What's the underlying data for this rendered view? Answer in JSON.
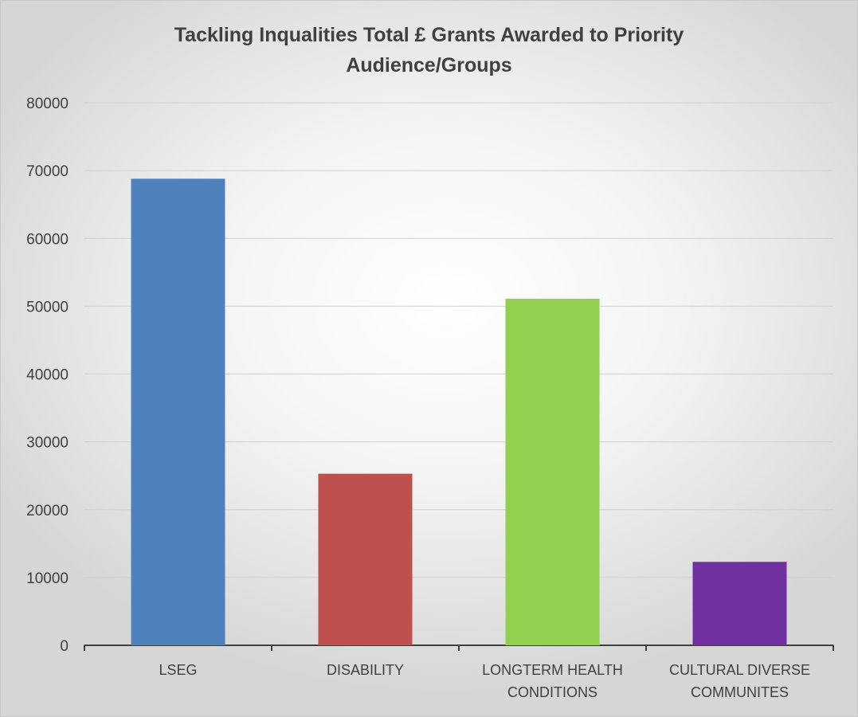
{
  "chart_data": {
    "type": "bar",
    "title": "Tackling Inqualities Total £ Grants Awarded to Priority Audience/Groups",
    "title_lines": [
      "Tackling Inqualities Total £ Grants Awarded to Priority",
      "Audience/Groups"
    ],
    "xlabel": "",
    "ylabel": "",
    "categories": [
      "LSEG",
      "DISABILITY",
      "LONGTERM HEALTH CONDITIONS",
      "CULTURAL DIVERSE COMMUNITES"
    ],
    "category_label_lines": [
      [
        "LSEG"
      ],
      [
        "DISABILITY"
      ],
      [
        "LONGTERM HEALTH",
        "CONDITIONS"
      ],
      [
        "CULTURAL DIVERSE",
        "COMMUNITES"
      ]
    ],
    "values": [
      68800,
      25300,
      51100,
      12300
    ],
    "colors": [
      "#4f81bd",
      "#c0504d",
      "#92d050",
      "#7030a0"
    ],
    "ylim": [
      0,
      80000
    ],
    "yticks": [
      0,
      10000,
      20000,
      30000,
      40000,
      50000,
      60000,
      70000,
      80000
    ],
    "grid": true,
    "legend": "none"
  }
}
